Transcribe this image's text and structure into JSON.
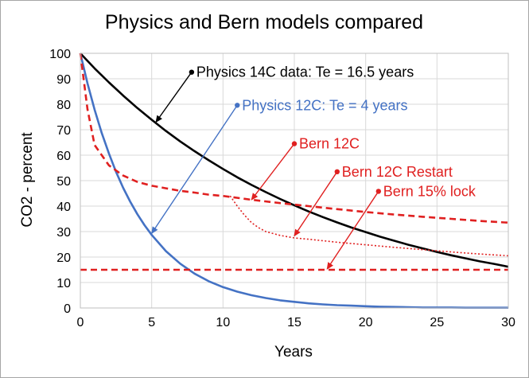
{
  "chart_data": {
    "type": "line",
    "title": "Physics and Bern models compared",
    "xlabel": "Years",
    "ylabel": "CO2 - percent",
    "xlim": [
      0,
      30
    ],
    "ylim": [
      0,
      100
    ],
    "xticks": [
      0,
      5,
      10,
      15,
      20,
      25,
      30
    ],
    "yticks": [
      0,
      10,
      20,
      30,
      40,
      50,
      60,
      70,
      80,
      90,
      100
    ],
    "grid": true,
    "series": [
      {
        "name": "Physics 14C data: Te = 16.5 years",
        "color": "#000000",
        "style": "solid",
        "x": [
          0,
          1,
          2,
          3,
          4,
          5,
          6,
          7,
          8,
          9,
          10,
          11,
          12,
          13,
          14,
          15,
          16,
          17,
          18,
          19,
          20,
          21,
          22,
          23,
          24,
          25,
          26,
          27,
          28,
          29,
          30
        ],
        "y": [
          100,
          94.1,
          88.6,
          83.4,
          78.5,
          73.9,
          69.5,
          65.4,
          61.6,
          58.0,
          54.6,
          51.3,
          48.3,
          45.5,
          42.8,
          40.3,
          37.9,
          35.7,
          33.6,
          31.6,
          29.8,
          28.0,
          26.4,
          24.8,
          23.4,
          22.0,
          20.7,
          19.5,
          18.3,
          17.3,
          16.2
        ]
      },
      {
        "name": "Physics 12C: Te = 4 years",
        "color": "#4472c4",
        "style": "solid",
        "x": [
          0,
          0.5,
          1,
          1.5,
          2,
          2.5,
          3,
          3.5,
          4,
          4.5,
          5,
          6,
          7,
          8,
          9,
          10,
          11,
          12,
          13,
          14,
          15,
          16,
          17,
          18,
          19,
          20,
          21,
          22,
          23,
          24,
          25,
          26,
          27,
          28,
          29,
          30
        ],
        "y": [
          100,
          88.2,
          77.9,
          68.7,
          60.7,
          53.5,
          47.2,
          41.7,
          36.8,
          32.5,
          28.7,
          22.3,
          17.4,
          13.5,
          10.5,
          8.2,
          6.4,
          5.0,
          3.9,
          3.0,
          2.4,
          1.8,
          1.4,
          1.1,
          0.9,
          0.7,
          0.5,
          0.4,
          0.3,
          0.2,
          0.2,
          0.2,
          0.1,
          0.1,
          0.1,
          0.1
        ]
      },
      {
        "name": "Bern 12C",
        "color": "#e02020",
        "style": "dashed",
        "x": [
          0,
          0.5,
          1,
          2,
          3,
          4,
          5,
          6,
          7,
          8,
          9,
          10,
          12,
          14,
          16,
          18,
          20,
          22,
          24,
          26,
          28,
          30
        ],
        "y": [
          100,
          78,
          64,
          56,
          52,
          49.5,
          48,
          47,
          46,
          45.3,
          44.5,
          44,
          42.5,
          41.2,
          40,
          38.8,
          37.7,
          36.7,
          35.8,
          35,
          34.2,
          33.5
        ]
      },
      {
        "name": "Bern 12C Restart",
        "color": "#e02020",
        "style": "dotted",
        "x": [
          10.5,
          11,
          11.5,
          12,
          12.5,
          13,
          14,
          15,
          16,
          18,
          20,
          22,
          24,
          26,
          28,
          30
        ],
        "y": [
          44,
          40,
          36.5,
          33.5,
          31.5,
          30,
          28.5,
          27.5,
          27,
          25.8,
          24.8,
          23.8,
          22.9,
          22,
          21.2,
          20.5
        ]
      },
      {
        "name": "Bern 15% lock",
        "color": "#e02020",
        "style": "dashed",
        "x": [
          0,
          30
        ],
        "y": [
          15,
          15
        ]
      }
    ],
    "annotations": [
      {
        "text": "Physics 14C data: Te = 16.5 years",
        "color": "#000000",
        "tail": [
          7.8,
          92.6
        ],
        "head": [
          5.3,
          73
        ]
      },
      {
        "text": "Physics 12C: Te = 4 years",
        "color": "#4472c4",
        "tail": [
          11.0,
          79.6
        ],
        "head": [
          5.0,
          29.3
        ]
      },
      {
        "text": "Bern 12C",
        "color": "#e02020",
        "tail": [
          15.0,
          64.5
        ],
        "head": [
          12.0,
          42.5
        ]
      },
      {
        "text": "Bern 12C Restart",
        "color": "#e02020",
        "tail": [
          18.0,
          53.5
        ],
        "head": [
          15.0,
          28.3
        ]
      },
      {
        "text": "Bern 15% lock",
        "color": "#e02020",
        "tail": [
          20.9,
          45.8
        ],
        "head": [
          17.3,
          15.3
        ]
      }
    ]
  }
}
